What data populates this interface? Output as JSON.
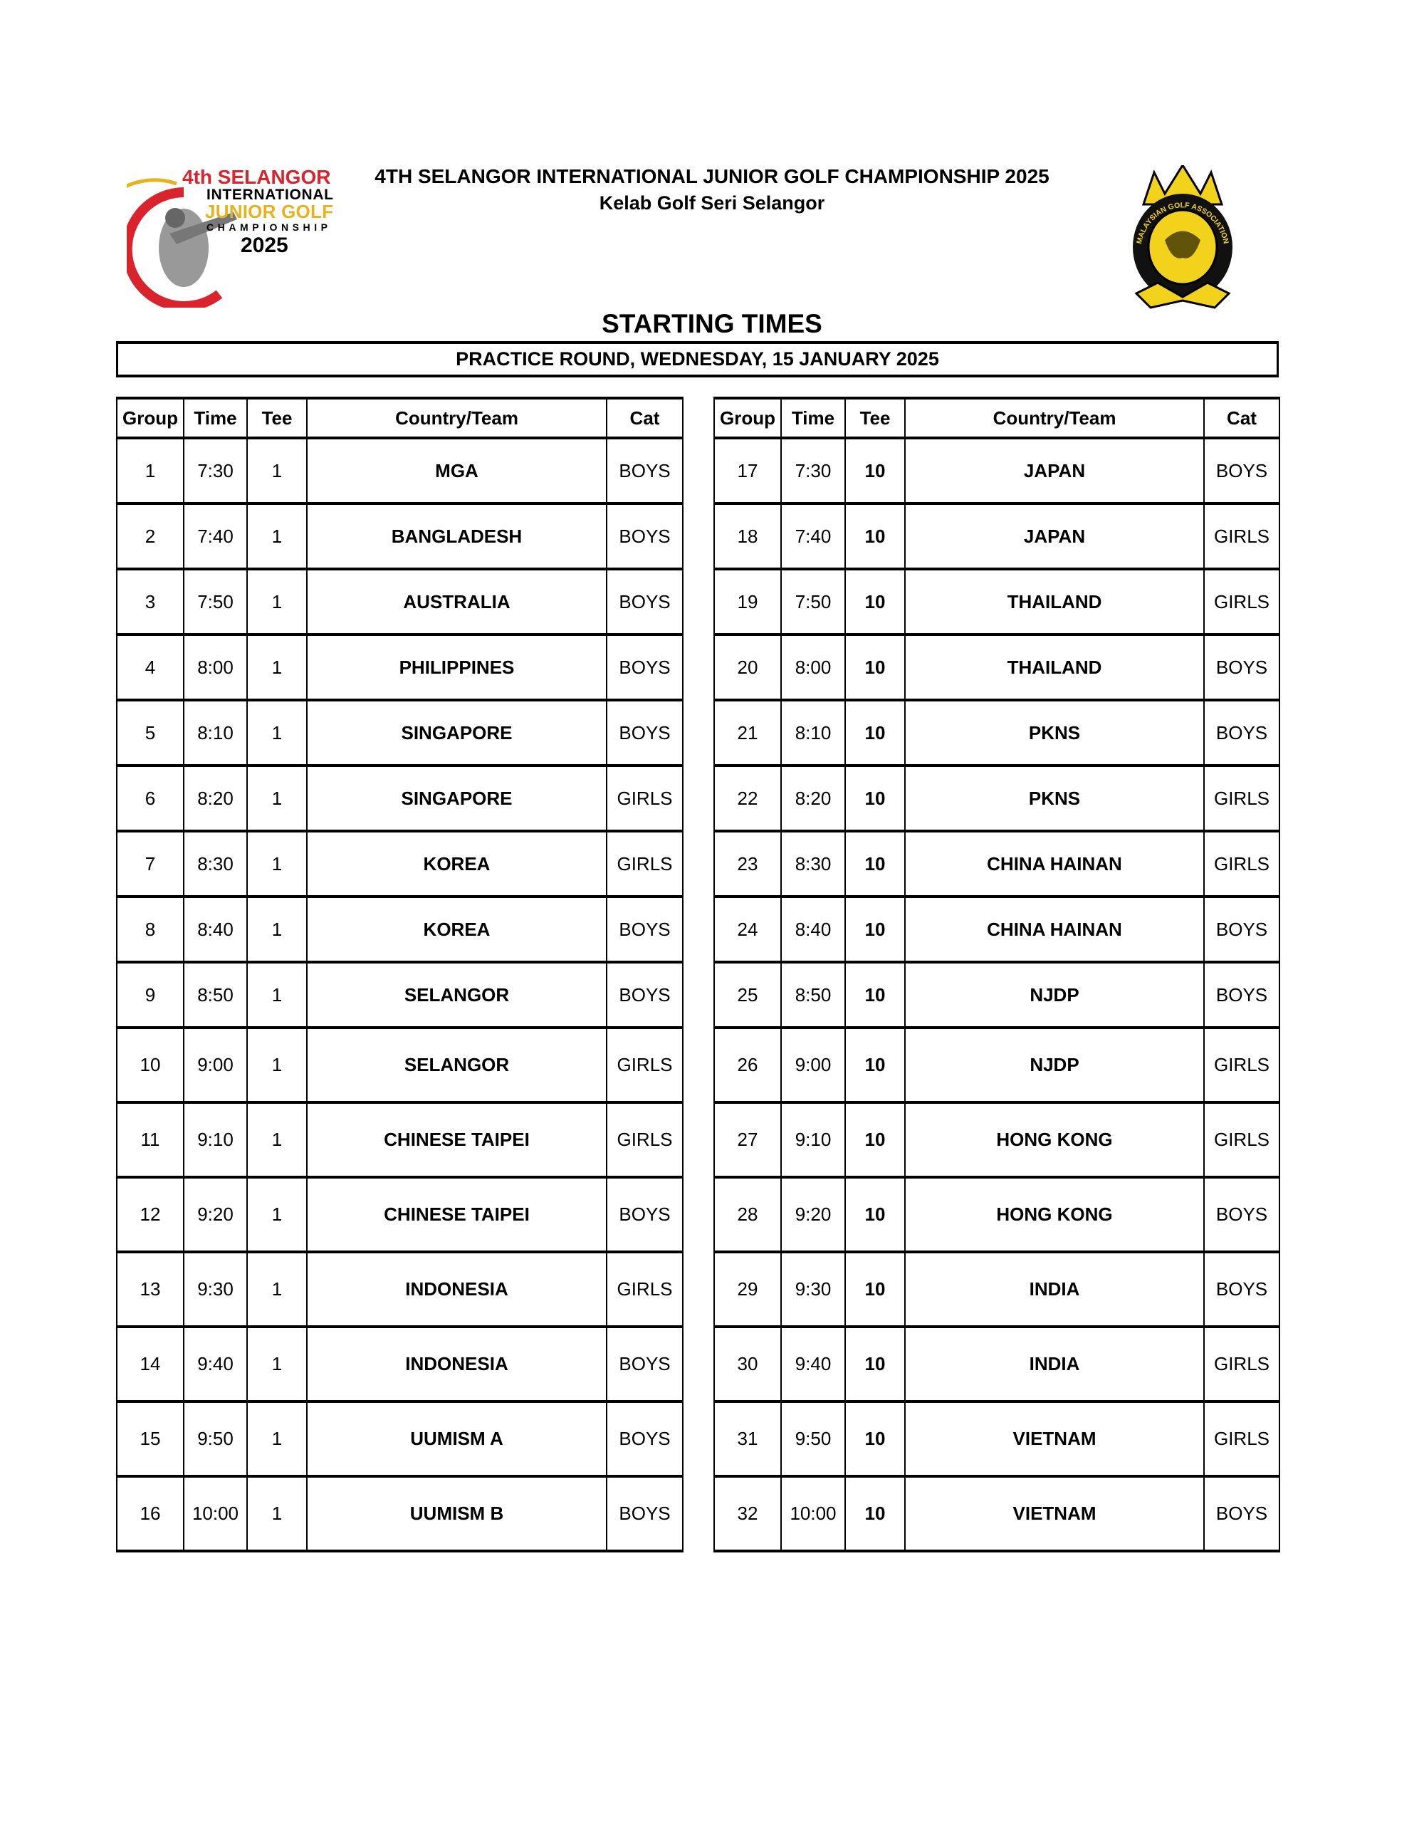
{
  "header": {
    "title": "4TH SELANGOR INTERNATIONAL JUNIOR GOLF CHAMPIONSHIP 2025",
    "venue": "Kelab Golf Seri Selangor",
    "left_logo_text": [
      "4th SELANGOR",
      "INTERNATIONAL",
      "JUNIOR GOLF",
      "CHAMPIONSHIP",
      "2025"
    ],
    "right_logo_text": "MALAYSIAN GOLF ASSOCIATION"
  },
  "heading": "STARTING TIMES",
  "round": "PRACTICE ROUND, WEDNESDAY, 15 JANUARY 2025",
  "columns": [
    "Group",
    "Time",
    "Tee",
    "Country/Team",
    "Cat"
  ],
  "left_rows": [
    [
      "1",
      "7:30",
      "1",
      "MGA",
      "BOYS"
    ],
    [
      "2",
      "7:40",
      "1",
      "BANGLADESH",
      "BOYS"
    ],
    [
      "3",
      "7:50",
      "1",
      "AUSTRALIA",
      "BOYS"
    ],
    [
      "4",
      "8:00",
      "1",
      "PHILIPPINES",
      "BOYS"
    ],
    [
      "5",
      "8:10",
      "1",
      "SINGAPORE",
      "BOYS"
    ],
    [
      "6",
      "8:20",
      "1",
      "SINGAPORE",
      "GIRLS"
    ],
    [
      "7",
      "8:30",
      "1",
      "KOREA",
      "GIRLS"
    ],
    [
      "8",
      "8:40",
      "1",
      "KOREA",
      "BOYS"
    ],
    [
      "9",
      "8:50",
      "1",
      "SELANGOR",
      "BOYS"
    ],
    [
      "10",
      "9:00",
      "1",
      "SELANGOR",
      "GIRLS"
    ],
    [
      "11",
      "9:10",
      "1",
      "CHINESE TAIPEI",
      "GIRLS"
    ],
    [
      "12",
      "9:20",
      "1",
      "CHINESE TAIPEI",
      "BOYS"
    ],
    [
      "13",
      "9:30",
      "1",
      "INDONESIA",
      "GIRLS"
    ],
    [
      "14",
      "9:40",
      "1",
      "INDONESIA",
      "BOYS"
    ],
    [
      "15",
      "9:50",
      "1",
      "UUMISM A",
      "BOYS"
    ],
    [
      "16",
      "10:00",
      "1",
      "UUMISM B",
      "BOYS"
    ]
  ],
  "right_rows": [
    [
      "17",
      "7:30",
      "10",
      "JAPAN",
      "BOYS"
    ],
    [
      "18",
      "7:40",
      "10",
      "JAPAN",
      "GIRLS"
    ],
    [
      "19",
      "7:50",
      "10",
      "THAILAND",
      "GIRLS"
    ],
    [
      "20",
      "8:00",
      "10",
      "THAILAND",
      "BOYS"
    ],
    [
      "21",
      "8:10",
      "10",
      "PKNS",
      "BOYS"
    ],
    [
      "22",
      "8:20",
      "10",
      "PKNS",
      "GIRLS"
    ],
    [
      "23",
      "8:30",
      "10",
      "CHINA HAINAN",
      "GIRLS"
    ],
    [
      "24",
      "8:40",
      "10",
      "CHINA HAINAN",
      "BOYS"
    ],
    [
      "25",
      "8:50",
      "10",
      "NJDP",
      "BOYS"
    ],
    [
      "26",
      "9:00",
      "10",
      "NJDP",
      "GIRLS"
    ],
    [
      "27",
      "9:10",
      "10",
      "HONG KONG",
      "GIRLS"
    ],
    [
      "28",
      "9:20",
      "10",
      "HONG KONG",
      "BOYS"
    ],
    [
      "29",
      "9:30",
      "10",
      "INDIA",
      "BOYS"
    ],
    [
      "30",
      "9:40",
      "10",
      "INDIA",
      "GIRLS"
    ],
    [
      "31",
      "9:50",
      "10",
      "VIETNAM",
      "GIRLS"
    ],
    [
      "32",
      "10:00",
      "10",
      "VIETNAM",
      "BOYS"
    ]
  ],
  "colors": {
    "logo_red": "#d9232d",
    "logo_gold": "#e5b320",
    "mga_yellow": "#f2d21b"
  }
}
